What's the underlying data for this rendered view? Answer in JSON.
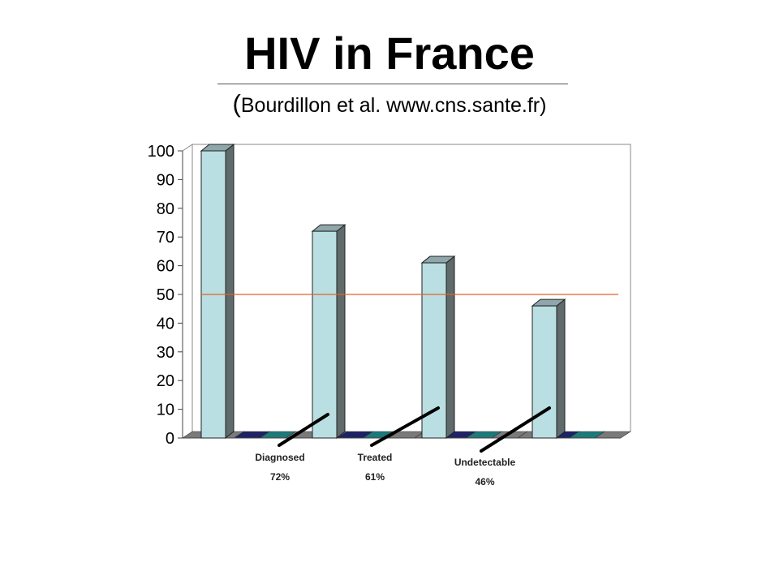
{
  "header": {
    "title": "HIV in France",
    "subtitle_open": "(",
    "subtitle_text": "Bourdillon et al.  www.cns.sante.fr",
    "subtitle_close": ")"
  },
  "chart_data": {
    "type": "bar",
    "yticks": [
      "0",
      "10",
      "20",
      "30",
      "40",
      "50",
      "60",
      "70",
      "80",
      "90",
      "100"
    ],
    "ylim": [
      0,
      100
    ],
    "bars": [
      100,
      72,
      61,
      46
    ],
    "reference_line": 50,
    "grid": false,
    "colors": {
      "bar_front": "#b9dfe3",
      "bar_side": "#5f6b6b",
      "bar_top": "#8fa7ab",
      "ref_line": "#e0622a",
      "floor_navy": "#1e2266",
      "floor_teal": "#1d7a7a",
      "floor_gray": "#7a7a7a"
    },
    "annotations": [
      {
        "label": "Diagnosed",
        "value": "72%"
      },
      {
        "label": "Treated",
        "value": "61%"
      },
      {
        "label": "Undetectable",
        "value": "46%"
      }
    ]
  }
}
